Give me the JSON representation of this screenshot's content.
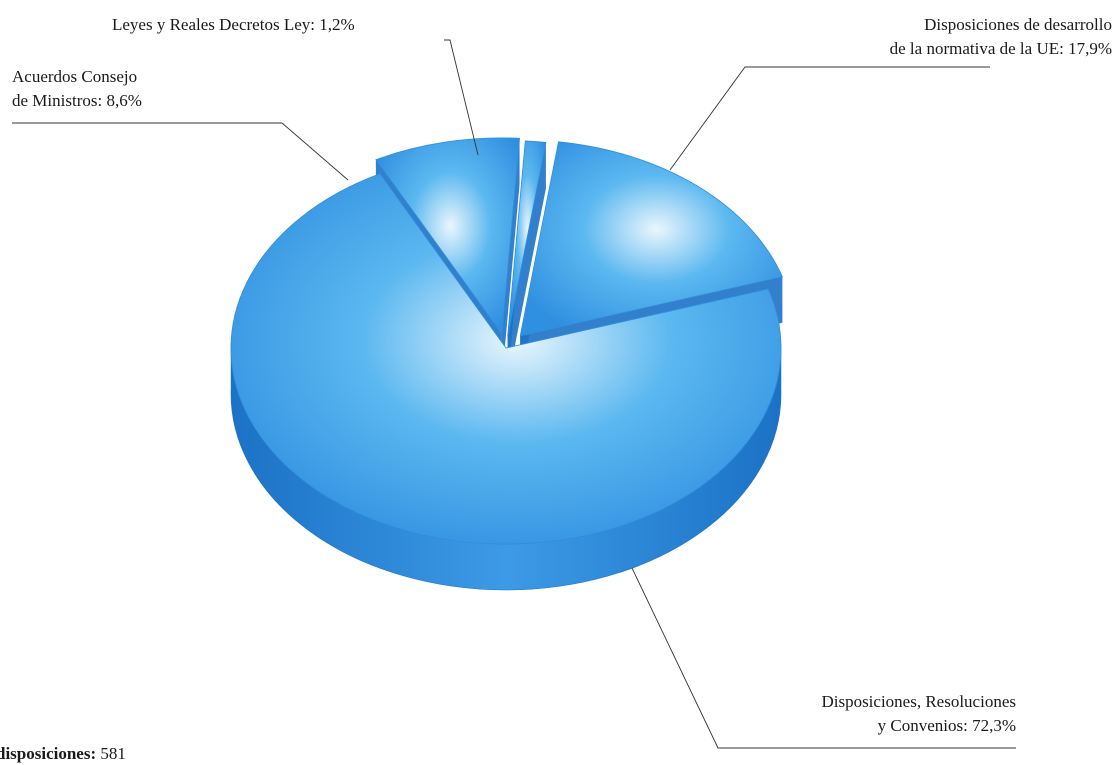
{
  "chart_data": {
    "type": "pie",
    "style": "3d-exploded",
    "slices": [
      {
        "lines": [
          "Disposiciones de desarrollo",
          "de la normativa de la UE: 17,9%"
        ],
        "value": 17.9
      },
      {
        "lines": [
          "Disposiciones, Resoluciones",
          "y Convenios: 72,3%"
        ],
        "value": 72.3
      },
      {
        "lines": [
          "Acuerdos Consejo",
          "de Ministros: 8,6%"
        ],
        "value": 8.6
      },
      {
        "lines": [
          "Leyes y Reales Decretos Ley: 1,2%"
        ],
        "value": 1.2
      }
    ],
    "colors": {
      "top_center": "#eaf6fd",
      "top_mid": "#5cb8f0",
      "top_edge": "#2f8fe0",
      "side_dark": "#1c72c6",
      "side_mid": "#3d9ae6"
    },
    "legend": "none"
  },
  "footer": {
    "label": "disposiciones:",
    "value": "581"
  }
}
